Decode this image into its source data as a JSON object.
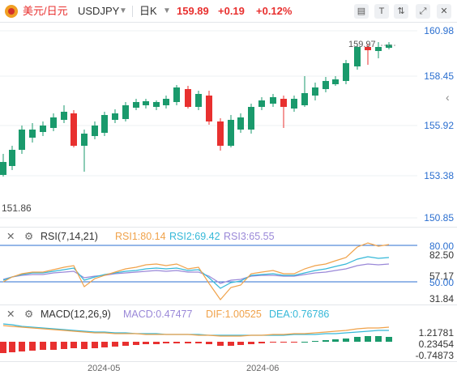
{
  "header": {
    "pair_name": "美元/日元",
    "symbol": "USDJPY",
    "symbol_dropdown_icon": "chevron-down-icon",
    "timeframe": "日K",
    "timeframe_dropdown_icon": "chevron-down-icon",
    "price": "159.89",
    "change": "+0.19",
    "change_pct": "+0.12%",
    "tool_icons": [
      "chart-settings-icon",
      "text-size-icon",
      "indicator-icon",
      "fullscreen-icon",
      "close-icon"
    ],
    "up_color": "#e8302f"
  },
  "main_chart": {
    "price_axis": [
      "160.98",
      "158.45",
      "155.92",
      "153.38",
      "150.85"
    ],
    "low_label": "151.86",
    "high_label": "159.97",
    "collapse_icon": "chevron-left-icon",
    "up_color": "#e8302f",
    "down_color": "#1a9a6c"
  },
  "rsi_panel": {
    "title": "RSI(7,14,21)",
    "rsi1_label": "RSI1:80.14",
    "rsi2_label": "RSI2:69.42",
    "rsi3_label": "RSI3:65.55",
    "axis": [
      "80.00",
      "82.50",
      "57.17",
      "50.00",
      "31.84"
    ],
    "colors": {
      "rsi1": "#f0a24a",
      "rsi2": "#35b8d8",
      "rsi3": "#9a88d8",
      "level": "#2b6fd0"
    }
  },
  "macd_panel": {
    "title": "MACD(12,26,9)",
    "macd_label": "MACD:0.47477",
    "dif_label": "DIF:1.00525",
    "dea_label": "DEA:0.76786",
    "axis": [
      "1.21781",
      "0.23454",
      "-0.74873"
    ],
    "colors": {
      "macd": "#9a88d8",
      "dif": "#f0a24a",
      "dea": "#35b8d8",
      "pos": "#1a9a6c",
      "neg": "#e8302f"
    }
  },
  "date_axis": [
    "2024-05",
    "2024-06"
  ]
}
